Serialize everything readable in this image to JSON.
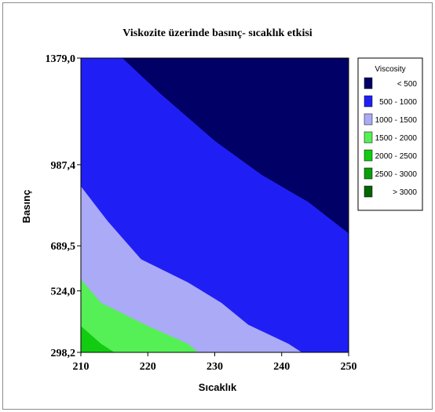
{
  "chart_data": {
    "type": "contour",
    "title": "Viskozite üzerinde basınç- sıcaklık etkisi",
    "xlabel": "Sıcaklık",
    "ylabel": "Basınç",
    "xlim": [
      210,
      250
    ],
    "ylim": [
      298.2,
      1379.0
    ],
    "x_ticks": [
      "210",
      "220",
      "230",
      "240",
      "250"
    ],
    "y_ticks": [
      "298,2",
      "524,0",
      "689,5",
      "987,4",
      "1379,0"
    ],
    "legend": {
      "title": "Viscosity",
      "placement": "right",
      "entries": [
        {
          "label": "<  500",
          "color": "#000066"
        },
        {
          "label": "500  -  1000",
          "color": "#1f1ff5"
        },
        {
          "label": "1000  -  1500",
          "color": "#aaaaf6"
        },
        {
          "label": "1500  -  2000",
          "color": "#55f055"
        },
        {
          "label": "2000  -  2500",
          "color": "#11cc11"
        },
        {
          "label": "2500  -  3000",
          "color": "#0b9e0b"
        },
        {
          "label": ">  3000",
          "color": "#006600"
        }
      ]
    },
    "boundaries": [
      {
        "level": 500,
        "points": [
          [
            216.2,
            1379.0
          ],
          [
            221.8,
            1250.0
          ],
          [
            230.0,
            1075.0
          ],
          [
            237.0,
            950.0
          ],
          [
            244.0,
            850.0
          ],
          [
            250.0,
            735.0
          ]
        ]
      },
      {
        "level": 1000,
        "points": [
          [
            210.0,
            908.0
          ],
          [
            214.0,
            780.0
          ],
          [
            219.0,
            640.0
          ],
          [
            226.0,
            555.0
          ],
          [
            231.0,
            480.0
          ],
          [
            235.0,
            400.0
          ],
          [
            241.0,
            330.0
          ],
          [
            243.0,
            298.2
          ]
        ]
      },
      {
        "level": 1500,
        "points": [
          [
            210.0,
            567.0
          ],
          [
            213.0,
            480.0
          ],
          [
            220.0,
            395.0
          ],
          [
            226.0,
            330.0
          ],
          [
            227.5,
            298.2
          ]
        ]
      },
      {
        "level": 2000,
        "points": [
          [
            210.0,
            395.0
          ],
          [
            213.0,
            330.0
          ],
          [
            215.0,
            298.2
          ]
        ]
      }
    ]
  }
}
